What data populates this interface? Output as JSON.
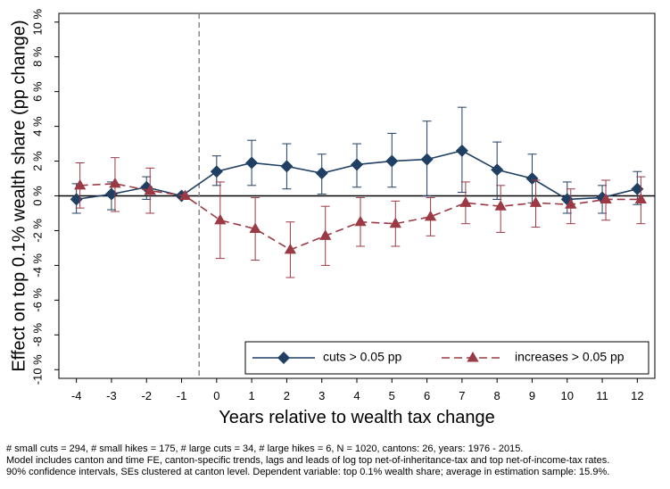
{
  "chart_data": {
    "type": "line",
    "title": "",
    "xlabel": "Years relative to wealth tax change",
    "ylabel": "Effect on top 0.1% wealth share (pp change)",
    "x": [
      -4,
      -3,
      -2,
      -1,
      0,
      1,
      2,
      3,
      4,
      5,
      6,
      7,
      8,
      9,
      10,
      11,
      12
    ],
    "xlim": [
      -4.5,
      12.5
    ],
    "ylim": [
      -10.5,
      10.5
    ],
    "yticks": [
      -10,
      -8,
      -6,
      -4,
      -2,
      0,
      2,
      4,
      6,
      8,
      10
    ],
    "ytick_labels": [
      "-10 %",
      "-8 %",
      "-6 %",
      "-4 %",
      "-2 %",
      "0 %",
      "2 %",
      "4 %",
      "6 %",
      "8 %",
      "10 %"
    ],
    "xtick_labels": [
      "-4",
      "-3",
      "-2",
      "-1",
      "0",
      "1",
      "2",
      "3",
      "4",
      "5",
      "6",
      "7",
      "8",
      "9",
      "10",
      "11",
      "12"
    ],
    "event_line_x": -0.5,
    "zero_line_y": 0,
    "grid": false,
    "legend_position": "bottom-right",
    "series": [
      {
        "name": "cuts > 0.05 pp",
        "color": "#1f3f63",
        "marker": "diamond",
        "line_style": "solid",
        "values": [
          -0.2,
          0.1,
          0.5,
          0.0,
          1.4,
          1.9,
          1.7,
          1.3,
          1.8,
          2.0,
          2.1,
          2.6,
          1.5,
          1.0,
          -0.2,
          -0.1,
          0.4
        ],
        "ci_low": [
          -1.0,
          -0.8,
          -0.2,
          0.0,
          0.6,
          0.6,
          0.4,
          0.1,
          0.5,
          0.5,
          0.0,
          0.2,
          -0.2,
          -0.4,
          -1.0,
          -1.0,
          -0.5
        ],
        "ci_high": [
          0.7,
          0.8,
          1.1,
          0.0,
          2.3,
          3.2,
          3.0,
          2.4,
          3.0,
          3.6,
          4.3,
          5.1,
          3.1,
          2.4,
          0.8,
          0.6,
          1.4
        ]
      },
      {
        "name": "increases > 0.05 pp",
        "color": "#9b3a45",
        "marker": "triangle",
        "line_style": "dashed",
        "values": [
          0.6,
          0.7,
          0.3,
          0.0,
          -1.4,
          -1.9,
          -3.1,
          -2.3,
          -1.5,
          -1.6,
          -1.2,
          -0.4,
          -0.6,
          -0.4,
          -0.5,
          -0.2,
          -0.2
        ],
        "ci_low": [
          -0.7,
          -0.9,
          -1.0,
          0.0,
          -3.6,
          -3.7,
          -4.7,
          -4.0,
          -2.9,
          -2.9,
          -2.3,
          -1.6,
          -2.1,
          -1.8,
          -1.6,
          -1.4,
          -1.6
        ],
        "ci_high": [
          1.9,
          2.2,
          1.6,
          0.0,
          0.8,
          -0.1,
          -1.5,
          -0.6,
          -0.1,
          -0.3,
          -0.1,
          0.8,
          0.6,
          0.9,
          0.4,
          0.9,
          1.1
        ]
      }
    ]
  },
  "notes": [
    "# small cuts = 294, # small hikes = 175, # large cuts = 34, # large hikes = 6, N = 1020, cantons: 26, years: 1976 - 2015.",
    "Model includes canton and time FE, canton-specific trends, lags and leads of log top net-of-inheritance-tax and top net-of-income-tax rates.",
    "90% confidence intervals, SEs clustered at canton level. Dependent variable: top 0.1% wealth share; average in estimation sample: 15.9%."
  ]
}
